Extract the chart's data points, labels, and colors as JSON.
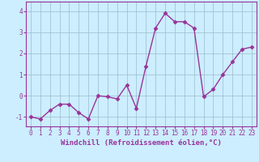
{
  "x": [
    0,
    1,
    2,
    3,
    4,
    5,
    6,
    7,
    8,
    9,
    10,
    11,
    12,
    13,
    14,
    15,
    16,
    17,
    18,
    19,
    20,
    21,
    22,
    23
  ],
  "y": [
    -1.0,
    -1.1,
    -0.7,
    -0.4,
    -0.4,
    -0.8,
    -1.1,
    0.0,
    -0.05,
    -0.15,
    0.5,
    -0.6,
    1.4,
    3.2,
    3.9,
    3.5,
    3.5,
    3.2,
    -0.05,
    0.3,
    1.0,
    1.6,
    2.2,
    2.3
  ],
  "line_color": "#993399",
  "marker": "D",
  "markersize": 2.5,
  "linewidth": 1.0,
  "background_color": "#cceeff",
  "grid_color": "#99bbcc",
  "xlabel": "Windchill (Refroidissement éolien,°C)",
  "xlabel_fontsize": 6.5,
  "yticks": [
    -1,
    0,
    1,
    2,
    3,
    4
  ],
  "xticks": [
    0,
    1,
    2,
    3,
    4,
    5,
    6,
    7,
    8,
    9,
    10,
    11,
    12,
    13,
    14,
    15,
    16,
    17,
    18,
    19,
    20,
    21,
    22,
    23
  ],
  "xlim": [
    -0.5,
    23.5
  ],
  "ylim": [
    -1.45,
    4.45
  ],
  "tick_fontsize": 5.5,
  "purple_color": "#993399"
}
